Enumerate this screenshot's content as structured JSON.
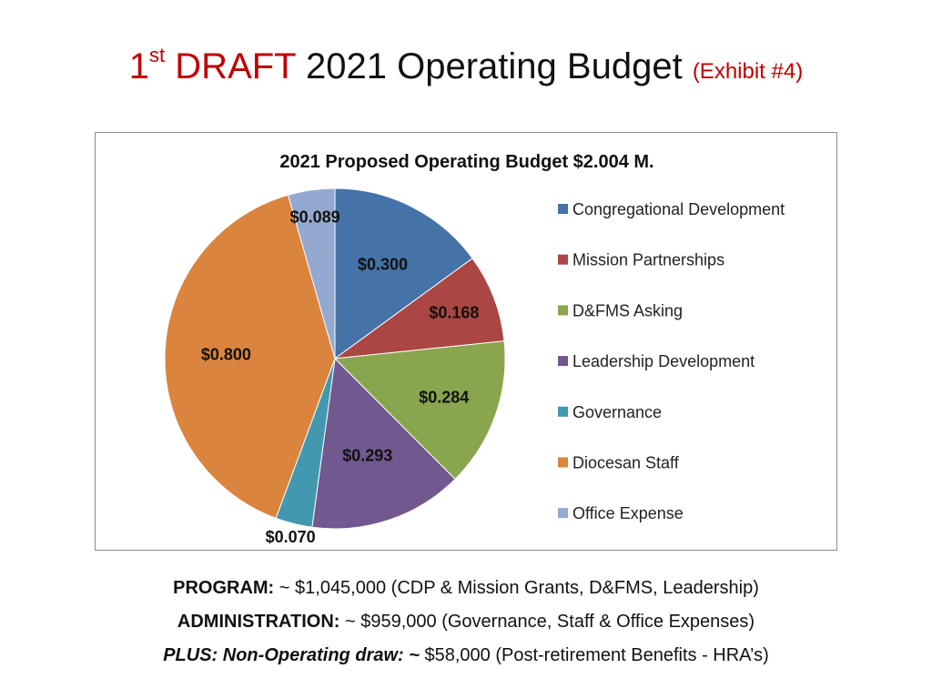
{
  "slide": {
    "title_ordinal": "1",
    "title_superscript": "st",
    "title_draft": "DRAFT",
    "title_main": "2021 Operating Budget",
    "title_exhibit": "(Exhibit #4)"
  },
  "chart_data": {
    "type": "pie",
    "title": "2021 Proposed Operating Budget $2.004 M.",
    "legend_position": "right",
    "slices": [
      {
        "name": "Congregational Development",
        "value": 0.3,
        "label": "$0.300",
        "color": "#4572a7"
      },
      {
        "name": "Mission Partnerships",
        "value": 0.168,
        "label": "$0.168",
        "color": "#aa4643"
      },
      {
        "name": "D&FMS Asking",
        "value": 0.284,
        "label": "$0.284",
        "color": "#89a54e"
      },
      {
        "name": "Leadership Development",
        "value": 0.293,
        "label": "$0.293",
        "color": "#71588f"
      },
      {
        "name": "Governance",
        "value": 0.07,
        "label": "$0.070",
        "color": "#4198af"
      },
      {
        "name": "Diocesan Staff",
        "value": 0.8,
        "label": "$0.800",
        "color": "#db843d"
      },
      {
        "name": "Office Expense",
        "value": 0.089,
        "label": "$0.089",
        "color": "#93a9cf"
      }
    ]
  },
  "summary": {
    "program_label": "PROGRAM:",
    "program_text": " ~ $1,045,000 (CDP & Mission Grants, D&FMS, Leadership)",
    "admin_label": "ADMINISTRATION:",
    "admin_text": " ~ $959,000 (Governance, Staff & Office Expenses)",
    "plus_label": "PLUS: Non-Operating draw:  ~",
    "plus_text": " $58,000 (Post-retirement Benefits - HRA’s)"
  }
}
